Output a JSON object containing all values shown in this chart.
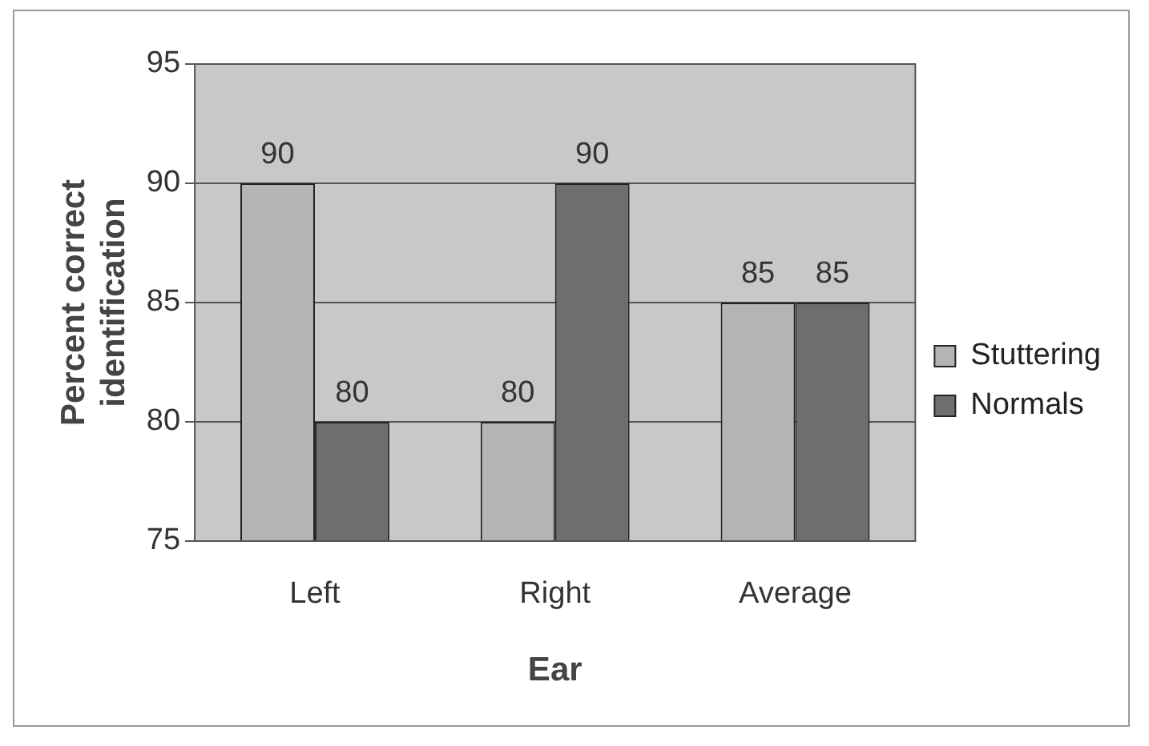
{
  "chart_data": {
    "type": "bar",
    "xlabel": "Ear",
    "ylabel": "Percent correct identification",
    "categories": [
      "Left",
      "Right",
      "Average"
    ],
    "series": [
      {
        "name": "Stuttering",
        "color": "#b4b4b4",
        "values": [
          90,
          80,
          85
        ]
      },
      {
        "name": "Normals",
        "color": "#6e6e6e",
        "values": [
          80,
          90,
          85
        ]
      }
    ],
    "ylim": [
      75,
      95
    ],
    "yticks": [
      75,
      80,
      85,
      90,
      95
    ],
    "grid": "y",
    "legend": "right",
    "data_labels": true
  }
}
